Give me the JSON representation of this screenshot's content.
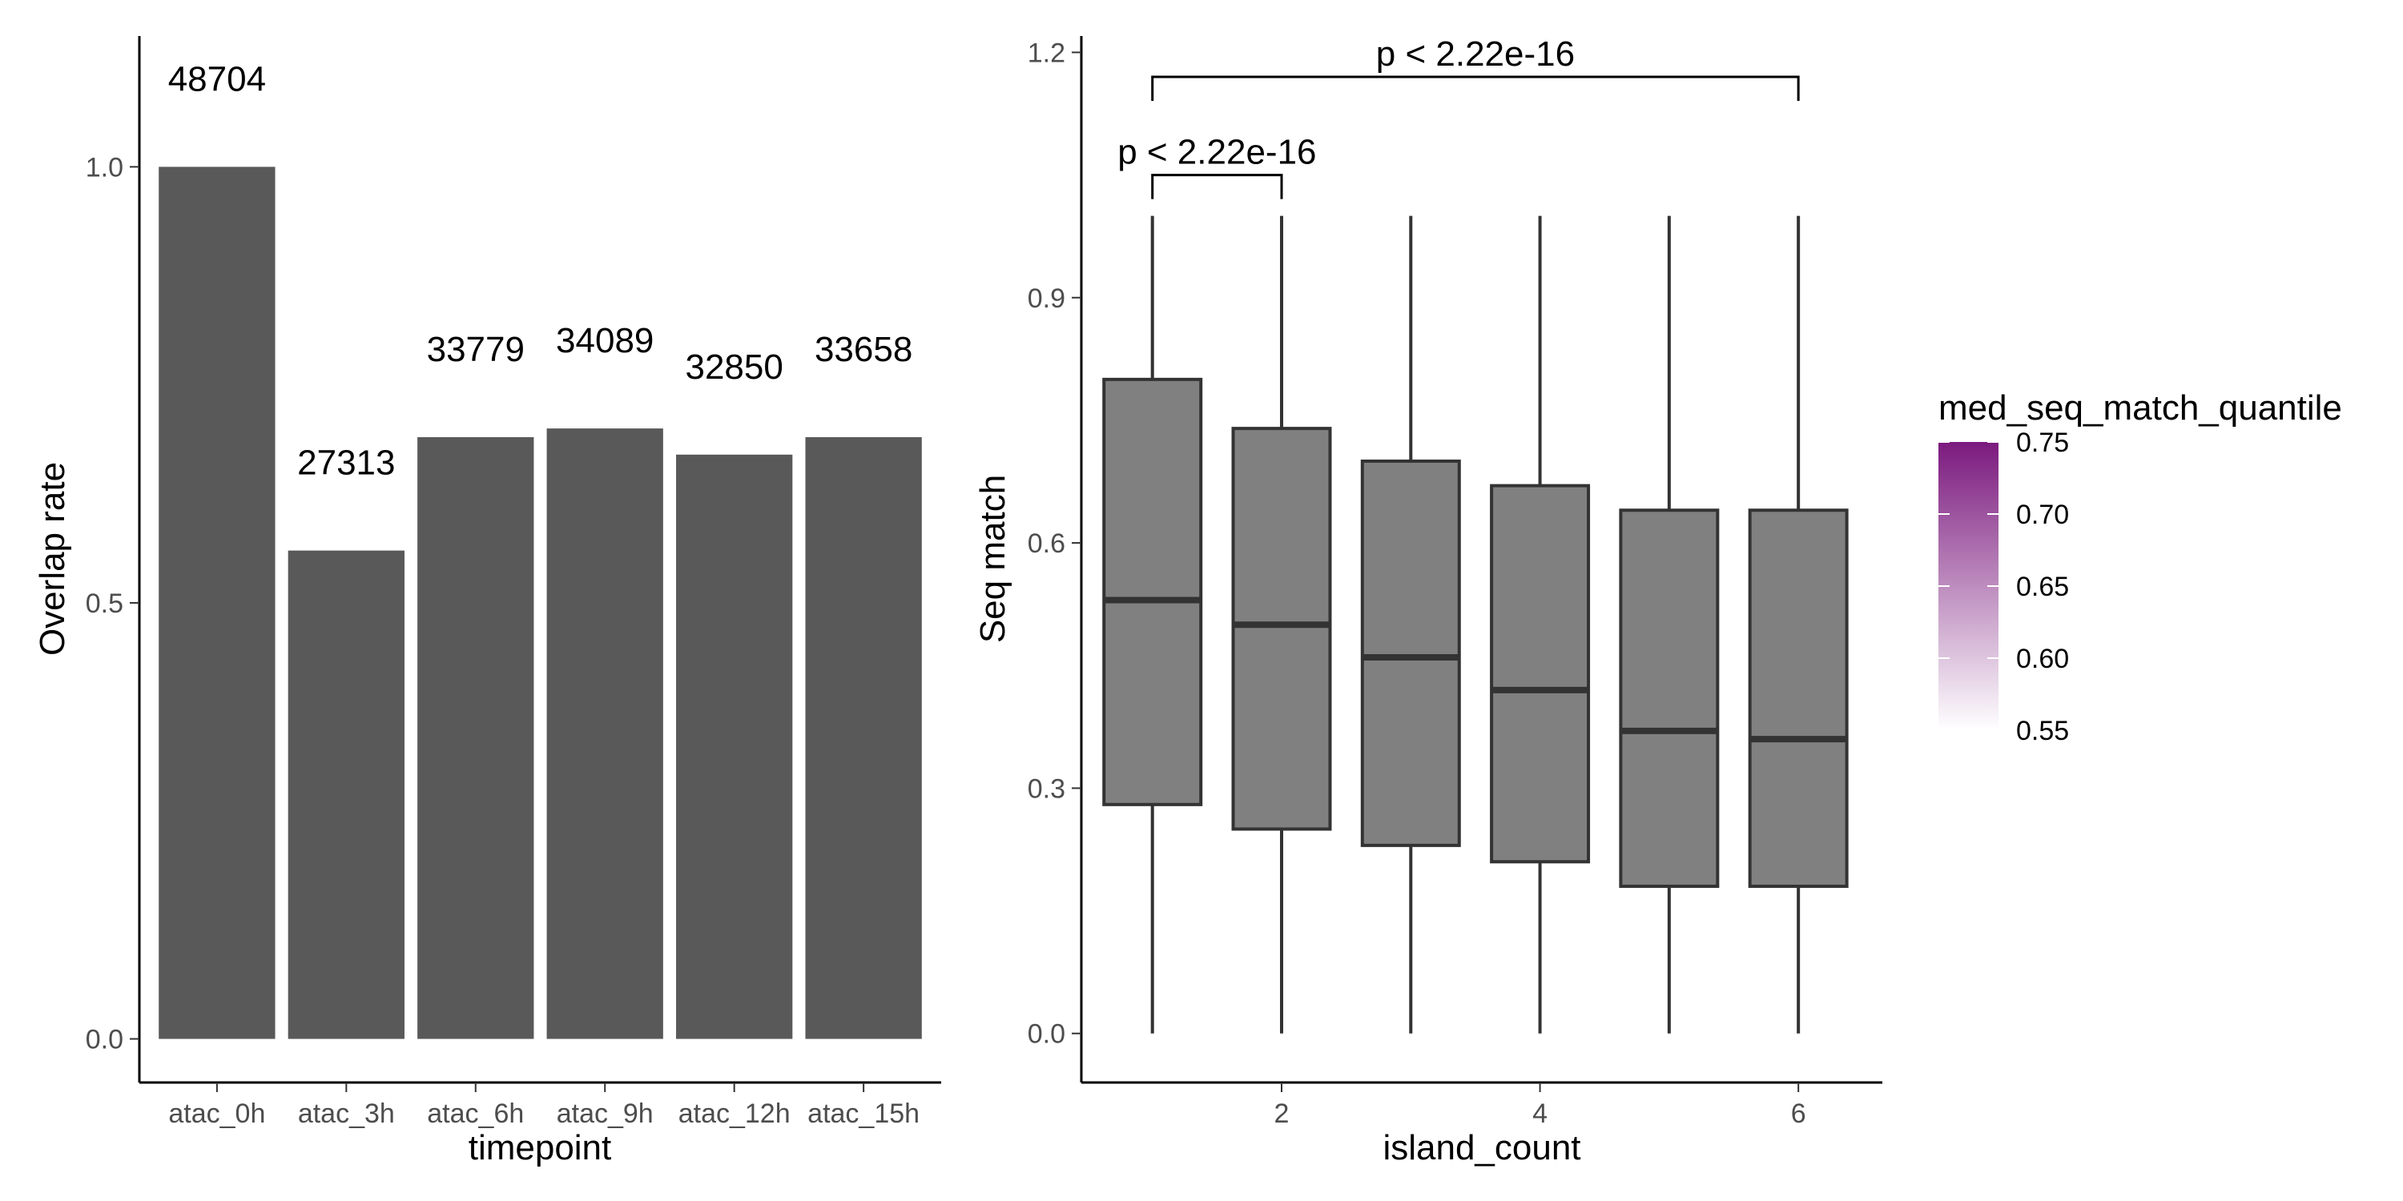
{
  "chart_data": [
    {
      "type": "bar",
      "xlabel": "timepoint",
      "ylabel": "Overlap rate",
      "categories": [
        "atac_0h",
        "atac_3h",
        "atac_6h",
        "atac_9h",
        "atac_12h",
        "atac_15h"
      ],
      "values": [
        1.0,
        0.56,
        0.69,
        0.7,
        0.67,
        0.69
      ],
      "data_labels": [
        "48704",
        "27313",
        "33779",
        "34089",
        "32850",
        "33658"
      ],
      "ylim": [
        -0.05,
        1.15
      ],
      "yticks": [
        0.0,
        0.5,
        1.0
      ],
      "ytick_labels": [
        "0.0",
        "0.5",
        "1.0"
      ],
      "bar_color": "#595959",
      "grid": false
    },
    {
      "type": "boxplot",
      "xlabel": "island_count",
      "ylabel": "Seq match",
      "x": [
        1,
        2,
        3,
        4,
        5,
        6
      ],
      "xlim": [
        0.45,
        6.65
      ],
      "xticks": [
        2,
        4,
        6
      ],
      "xtick_labels": [
        "2",
        "4",
        "6"
      ],
      "ylim": [
        -0.06,
        1.22
      ],
      "yticks": [
        0.0,
        0.3,
        0.6,
        0.9,
        1.2
      ],
      "ytick_labels": [
        "0.0",
        "0.3",
        "0.6",
        "0.9",
        "1.2"
      ],
      "boxes": [
        {
          "x": 1,
          "min": 0.0,
          "q1": 0.28,
          "median": 0.53,
          "q3": 0.8,
          "max": 1.0
        },
        {
          "x": 2,
          "min": 0.0,
          "q1": 0.25,
          "median": 0.5,
          "q3": 0.74,
          "max": 1.0
        },
        {
          "x": 3,
          "min": 0.0,
          "q1": 0.23,
          "median": 0.46,
          "q3": 0.7,
          "max": 1.0
        },
        {
          "x": 4,
          "min": 0.0,
          "q1": 0.21,
          "median": 0.42,
          "q3": 0.67,
          "max": 1.0
        },
        {
          "x": 5,
          "min": 0.0,
          "q1": 0.18,
          "median": 0.37,
          "q3": 0.64,
          "max": 1.0
        },
        {
          "x": 6,
          "min": 0.0,
          "q1": 0.18,
          "median": 0.36,
          "q3": 0.64,
          "max": 1.0
        }
      ],
      "box_fill": "#808080",
      "box_stroke": "#333333",
      "annotations": [
        {
          "text": "p < 2.22e-16",
          "x1": 1,
          "x2": 2,
          "y": 1.05
        },
        {
          "text": "p < 2.22e-16",
          "x1": 1,
          "x2": 6,
          "y": 1.17
        }
      ],
      "legend": {
        "title": "med_seq_match_quantile",
        "type": "gradient",
        "range": [
          0.55,
          0.75
        ],
        "breaks": [
          0.75,
          0.7,
          0.65,
          0.6,
          0.55
        ],
        "break_labels": [
          "0.75",
          "0.70",
          "0.65",
          "0.60",
          "0.55"
        ],
        "color_low": "#ffffff",
        "color_high": "#7b1a7e",
        "placement": "right"
      },
      "grid": false
    }
  ]
}
